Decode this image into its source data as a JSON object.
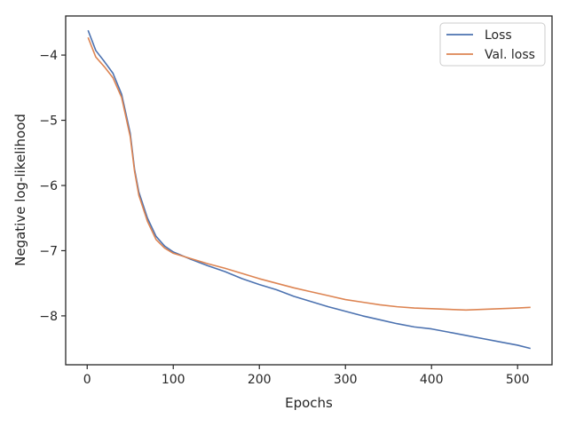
{
  "chart_data": {
    "type": "line",
    "title": "",
    "xlabel": "Epochs",
    "ylabel": "Negative log-likelihood",
    "xlim": [
      -25,
      540
    ],
    "ylim": [
      -8.75,
      -3.4
    ],
    "xticks": [
      0,
      100,
      200,
      300,
      400,
      500
    ],
    "xtick_labels": [
      "0",
      "100",
      "200",
      "300",
      "400",
      "500"
    ],
    "yticks": [
      -4,
      -5,
      -6,
      -7,
      -8
    ],
    "ytick_labels": [
      "−4",
      "−5",
      "−6",
      "−7",
      "−8"
    ],
    "grid": false,
    "legend_position": "upper-right",
    "series": [
      {
        "name": "Loss",
        "color": "#4c72b0",
        "x": [
          1,
          10,
          20,
          30,
          40,
          50,
          55,
          60,
          70,
          80,
          90,
          100,
          120,
          140,
          160,
          180,
          200,
          220,
          240,
          260,
          280,
          300,
          320,
          340,
          360,
          380,
          400,
          420,
          440,
          460,
          480,
          500,
          515
        ],
        "y": [
          -3.62,
          -3.93,
          -4.1,
          -4.28,
          -4.6,
          -5.2,
          -5.75,
          -6.1,
          -6.5,
          -6.78,
          -6.93,
          -7.02,
          -7.13,
          -7.23,
          -7.32,
          -7.43,
          -7.52,
          -7.6,
          -7.7,
          -7.78,
          -7.86,
          -7.93,
          -8.0,
          -8.06,
          -8.12,
          -8.17,
          -8.2,
          -8.25,
          -8.3,
          -8.35,
          -8.4,
          -8.45,
          -8.5
        ]
      },
      {
        "name": "Val. loss",
        "color": "#dd8452",
        "x": [
          1,
          10,
          20,
          30,
          40,
          50,
          55,
          60,
          70,
          80,
          90,
          100,
          120,
          140,
          160,
          180,
          200,
          220,
          240,
          260,
          280,
          300,
          320,
          340,
          360,
          380,
          400,
          420,
          440,
          460,
          480,
          500,
          515
        ],
        "y": [
          -3.73,
          -4.03,
          -4.18,
          -4.35,
          -4.65,
          -5.25,
          -5.78,
          -6.15,
          -6.55,
          -6.83,
          -6.96,
          -7.04,
          -7.12,
          -7.2,
          -7.27,
          -7.35,
          -7.43,
          -7.5,
          -7.57,
          -7.63,
          -7.69,
          -7.75,
          -7.79,
          -7.83,
          -7.86,
          -7.88,
          -7.89,
          -7.9,
          -7.91,
          -7.9,
          -7.89,
          -7.88,
          -7.87
        ]
      }
    ]
  }
}
